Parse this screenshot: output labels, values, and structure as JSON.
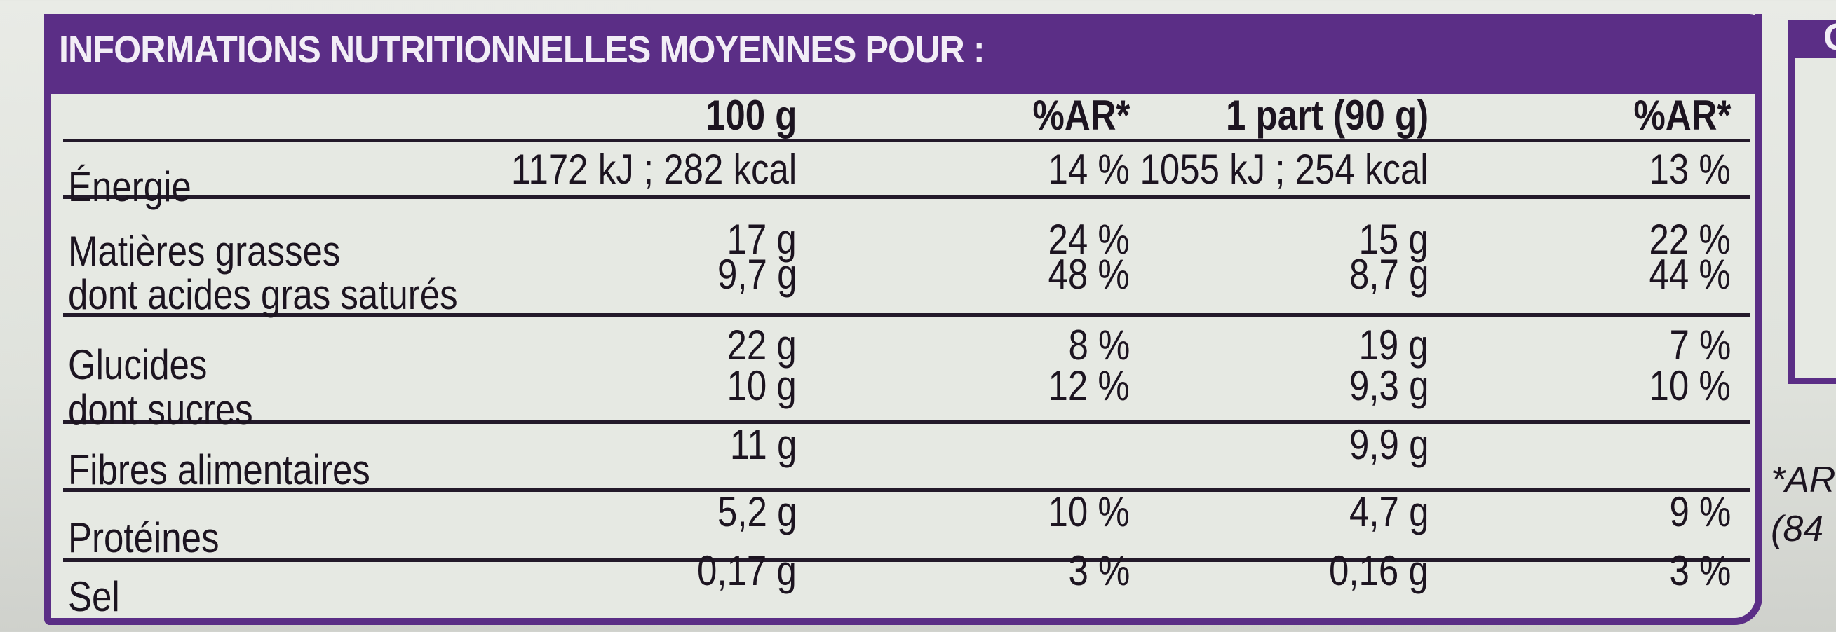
{
  "title": "INFORMATIONS NUTRITIONNELLES MOYENNES POUR :",
  "columns": [
    "100 g",
    "%AR*",
    "1 part (90 g)",
    "%AR*"
  ],
  "rows": [
    {
      "label": "Énergie",
      "per100": "1172 kJ ;  282 kcal",
      "ar100": "14 %",
      "perPortion": "1055 kJ ;  254 kcal",
      "arPortion": "13 %"
    },
    {
      "label": "Matières grasses",
      "per100": "17 g",
      "ar100": "24 %",
      "perPortion": "15 g",
      "arPortion": "22 %"
    },
    {
      "label": "dont acides gras saturés",
      "per100": "9,7 g",
      "ar100": "48 %",
      "perPortion": "8,7 g",
      "arPortion": "44 %"
    },
    {
      "label": "Glucides",
      "per100": "22 g",
      "ar100": "8 %",
      "perPortion": "19 g",
      "arPortion": "7 %"
    },
    {
      "label": "dont sucres",
      "per100": "10 g",
      "ar100": "12 %",
      "perPortion": "9,3 g",
      "arPortion": "10 %"
    },
    {
      "label": "Fibres alimentaires",
      "per100": "11 g",
      "ar100": "",
      "perPortion": "9,9 g",
      "arPortion": ""
    },
    {
      "label": "Protéines",
      "per100": "5,2 g",
      "ar100": "10 %",
      "perPortion": "4,7 g",
      "arPortion": "9 %"
    },
    {
      "label": "Sel",
      "per100": "0,17 g",
      "ar100": "3 %",
      "perPortion": "0,16 g",
      "arPortion": "3 %"
    }
  ],
  "side_panel": {
    "header_fragment": "C"
  },
  "footnote_fragments": [
    "*AR",
    "(84"
  ],
  "colors": {
    "brand_purple": "#5b2e86",
    "text": "#1c1420"
  }
}
